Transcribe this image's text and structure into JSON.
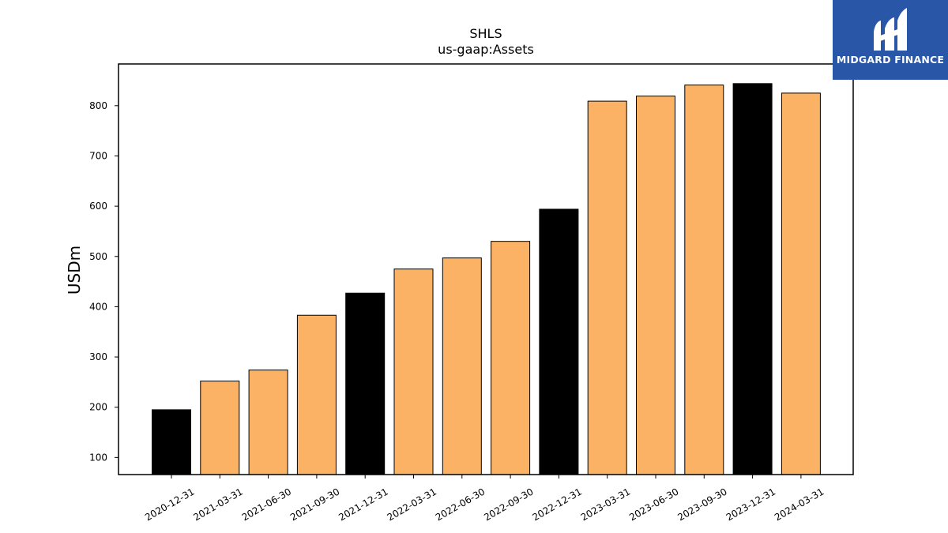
{
  "chart_data": {
    "type": "bar",
    "title": "SHLS",
    "subtitle": "us-gaap:Assets",
    "xlabel": "",
    "ylabel": "USDm",
    "ylim": [
      66,
      883
    ],
    "yticks": [
      100,
      200,
      300,
      400,
      500,
      600,
      700,
      800
    ],
    "grid": false,
    "categories": [
      "2020-12-31",
      "2021-03-31",
      "2021-06-30",
      "2021-09-30",
      "2021-12-31",
      "2022-03-31",
      "2022-06-30",
      "2022-09-30",
      "2022-12-31",
      "2023-03-31",
      "2023-06-30",
      "2023-09-30",
      "2023-12-31",
      "2024-03-31"
    ],
    "values": [
      195,
      252,
      274,
      383,
      427,
      475,
      497,
      530,
      594,
      809,
      819,
      841,
      844,
      825
    ],
    "bar_colors": [
      "#000000",
      "#fbb264",
      "#fbb264",
      "#fbb264",
      "#000000",
      "#fbb264",
      "#fbb264",
      "#fbb264",
      "#000000",
      "#fbb264",
      "#fbb264",
      "#fbb264",
      "#000000",
      "#fbb264"
    ]
  },
  "logo": {
    "text": "MIDGARD FINANCE",
    "background": "#2a56a8"
  }
}
